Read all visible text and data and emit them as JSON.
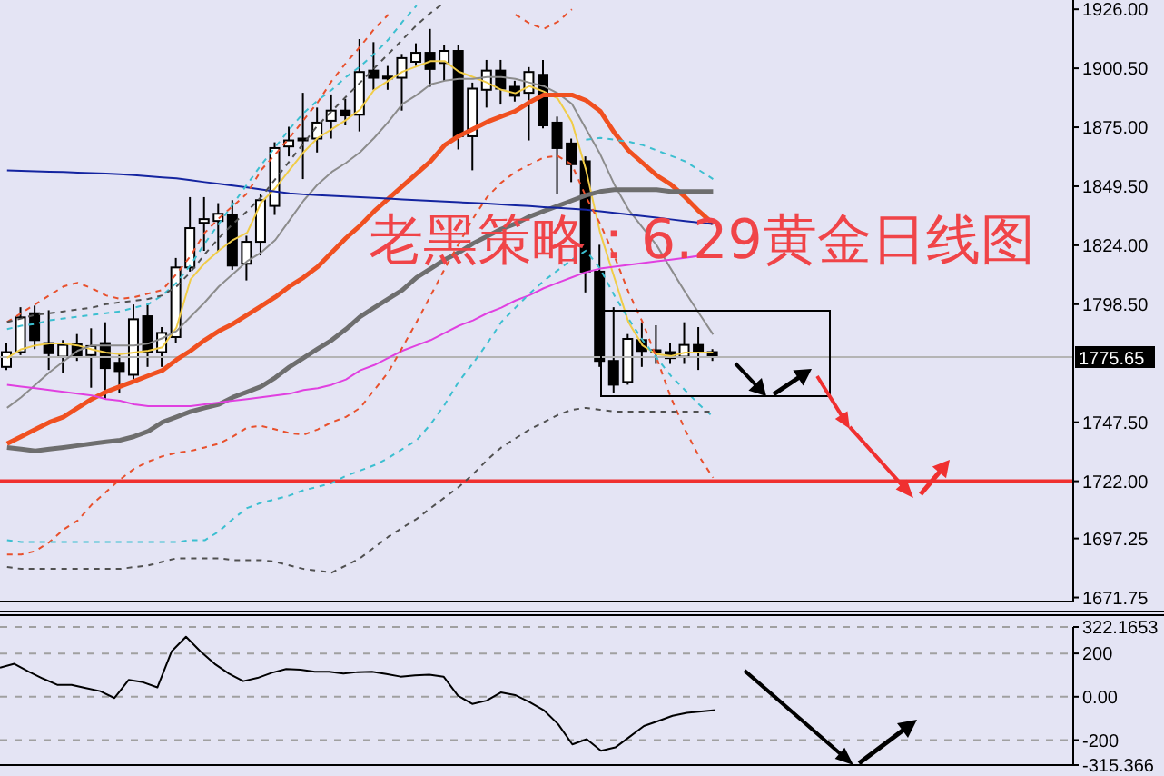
{
  "chart_data": [
    {
      "type": "candlestick",
      "title": "老黑策略：6.29黄金日线图",
      "categories": [
        null,
        null,
        null,
        null,
        null,
        null,
        null,
        null,
        null,
        null,
        null,
        null,
        null,
        null,
        null,
        null,
        null,
        null,
        null,
        null,
        null,
        null,
        null,
        null,
        null,
        null,
        null,
        null,
        null,
        null,
        null,
        null,
        null,
        null,
        null,
        null,
        null,
        null,
        null,
        null,
        null,
        null,
        null,
        null,
        null,
        null,
        null,
        null,
        null,
        null,
        null,
        null,
        null,
        null,
        null,
        null,
        null,
        null,
        null,
        null,
        null,
        null,
        null,
        null,
        null,
        null,
        null,
        null,
        null,
        null,
        null,
        null,
        null,
        null,
        null,
        null
      ],
      "ohlc": [
        [
          1771.4,
          1781.7,
          1770.1,
          1777.8
        ],
        [
          1777.8,
          1797.2,
          1776.5,
          1792.8
        ],
        [
          1794.6,
          1797.9,
          1779.1,
          1783.0
        ],
        [
          1781.7,
          1795.9,
          1770.1,
          1777.3
        ],
        [
          1775.8,
          1783.0,
          1768.8,
          1780.9
        ],
        [
          1781.2,
          1785.6,
          1774.0,
          1776.0
        ],
        [
          1776.5,
          1788.1,
          1762.4,
          1780.4
        ],
        [
          1781.7,
          1790.7,
          1757.2,
          1770.9
        ],
        [
          1773.2,
          1777.3,
          1760.3,
          1769.6
        ],
        [
          1768.0,
          1798.4,
          1764.9,
          1792.0
        ],
        [
          1793.3,
          1798.4,
          1771.4,
          1777.8
        ],
        [
          1777.8,
          1788.6,
          1771.4,
          1786.1
        ],
        [
          1784.3,
          1818.5,
          1781.7,
          1814.4
        ],
        [
          1814.4,
          1844.8,
          1812.6,
          1831.4
        ],
        [
          1833.7,
          1844.8,
          1821.6,
          1835.3
        ],
        [
          1834.5,
          1842.2,
          1821.6,
          1837.6
        ],
        [
          1837.1,
          1843.5,
          1813.4,
          1815.2
        ],
        [
          1816.0,
          1828.1,
          1808.8,
          1825.5
        ],
        [
          1825.5,
          1846.1,
          1819.6,
          1843.5
        ],
        [
          1841.0,
          1868.5,
          1837.1,
          1866.0
        ],
        [
          1866.7,
          1875.2,
          1862.4,
          1869.3
        ],
        [
          1869.6,
          1889.9,
          1852.6,
          1870.1
        ],
        [
          1870.1,
          1883.5,
          1864.1,
          1877.0
        ],
        [
          1877.8,
          1889.2,
          1870.1,
          1882.2
        ],
        [
          1882.2,
          1887.3,
          1875.8,
          1880.1
        ],
        [
          1880.4,
          1913.1,
          1873.2,
          1898.9
        ],
        [
          1899.5,
          1911.8,
          1891.2,
          1896.4
        ],
        [
          1896.9,
          1901.5,
          1891.2,
          1896.1
        ],
        [
          1896.4,
          1906.7,
          1882.2,
          1904.9
        ],
        [
          1903.3,
          1911.3,
          1901.5,
          1907.2
        ],
        [
          1907.2,
          1917.5,
          1892.5,
          1900.2
        ],
        [
          1902.8,
          1910.5,
          1895.1,
          1908.0
        ],
        [
          1908.0,
          1910.5,
          1865.4,
          1871.1
        ],
        [
          1871.1,
          1894.3,
          1856.4,
          1891.7
        ],
        [
          1891.2,
          1904.1,
          1883.5,
          1899.5
        ],
        [
          1899.5,
          1904.1,
          1884.8,
          1891.7
        ],
        [
          1892.5,
          1895.1,
          1886.1,
          1888.6
        ],
        [
          1889.9,
          1901.0,
          1869.3,
          1898.9
        ],
        [
          1897.7,
          1904.1,
          1874.5,
          1875.8
        ],
        [
          1877.0,
          1879.6,
          1846.1,
          1866.0
        ],
        [
          1868.0,
          1870.1,
          1851.3,
          1859.0
        ],
        [
          1860.3,
          1862.4,
          1803.6,
          1812.6
        ],
        [
          1812.6,
          1824.2,
          1771.4,
          1774.0
        ],
        [
          1774.0,
          1797.2,
          1760.3,
          1763.7
        ],
        [
          1764.9,
          1785.6,
          1763.7,
          1783.5
        ],
        [
          1783.0,
          1790.7,
          1771.4,
          1778.3
        ],
        [
          1778.6,
          1789.4,
          1772.7,
          1778.1
        ],
        [
          1777.8,
          1781.7,
          1772.7,
          1775.2
        ],
        [
          1775.8,
          1790.7,
          1772.7,
          1780.9
        ],
        [
          1780.9,
          1788.6,
          1770.1,
          1777.8
        ],
        [
          1777.8,
          1779.1,
          1774.0,
          1775.65
        ],
        null,
        null,
        null,
        null,
        null,
        null,
        null,
        null,
        null,
        null,
        null,
        null,
        null,
        null,
        null,
        null,
        null,
        null,
        null,
        null,
        null,
        null,
        null,
        null,
        null
      ],
      "series": [
        {
          "type": "line",
          "color": "#f0cc48",
          "line_style": "solid",
          "values": [
            1775.3,
            1779,
            1780.7,
            1781.5,
            1781.5,
            1780.7,
            1779,
            1777.6,
            1776.9,
            1777.6,
            1778.4,
            1779.9,
            1788.4,
            1809.3,
            1816.3,
            1821.7,
            1826.3,
            1829.4,
            1842.5,
            1848.7,
            1856.5,
            1864.2,
            1870.4,
            1874.2,
            1878.1,
            1882.7,
            1891.2,
            1895.1,
            1899,
            1901.3,
            1903.6,
            1903.6,
            1899,
            1896.7,
            1894.3,
            1891.2,
            1889.7,
            1892.8,
            1890.5,
            1887.4,
            1877.3,
            1856.5,
            1829.4,
            1810.1,
            1790.8,
            1780.7,
            1776.9,
            1776.1,
            1777.6,
            1777.6,
            1777.6,
            null,
            null,
            null,
            null,
            null,
            null,
            null,
            null,
            null,
            null,
            null,
            null,
            null,
            null,
            null,
            null,
            null,
            null,
            null,
            null,
            null,
            null,
            null,
            null,
            null
          ]
        },
        {
          "type": "line",
          "color": "#8c8c8c",
          "line_style": "solid",
          "values": [
            1753.7,
            1758.3,
            1763.7,
            1769.1,
            1773.8,
            1778.4,
            1780.7,
            1780.7,
            1780.7,
            1780.7,
            1781.5,
            1783.8,
            1786.9,
            1793.1,
            1799.3,
            1806.2,
            1811.6,
            1817.1,
            1820.9,
            1826.3,
            1834.8,
            1843.3,
            1850.3,
            1855.7,
            1859.6,
            1864.2,
            1870.4,
            1877.3,
            1885.1,
            1888.9,
            1893.6,
            1895.1,
            1895.9,
            1895.9,
            1896.7,
            1896.7,
            1895.9,
            1894.3,
            1892.8,
            1889.7,
            1885.1,
            1874.2,
            1863.4,
            1850.3,
            1839.5,
            1831.7,
            1824,
            1813.9,
            1803.9,
            1794.6,
            1785.4,
            null,
            null,
            null,
            null,
            null,
            null,
            null,
            null,
            null,
            null,
            null,
            null,
            null,
            null,
            null,
            null,
            null,
            null,
            null,
            null,
            null,
            null,
            null,
            null,
            null
          ]
        },
        {
          "type": "line",
          "color": "#f05020",
          "line_style": "solid",
          "values": [
            1738.2,
            1741.3,
            1744.4,
            1747.5,
            1749.8,
            1753.7,
            1757.5,
            1760.6,
            1762.9,
            1765.2,
            1767.6,
            1769.9,
            1774.5,
            1778.4,
            1783,
            1786.9,
            1790,
            1793.9,
            1797.7,
            1801.6,
            1806.2,
            1810.1,
            1814.7,
            1820.9,
            1827.1,
            1832.5,
            1838.7,
            1844.1,
            1849.5,
            1854.9,
            1860.3,
            1867.3,
            1871.2,
            1874.2,
            1877.3,
            1879.7,
            1882,
            1885.8,
            1889,
            1889,
            1889,
            1886.6,
            1882,
            1872.7,
            1865,
            1859.6,
            1854.2,
            1850.3,
            1844.9,
            1838.7,
            1833.3,
            null,
            null,
            null,
            null,
            null,
            null,
            null,
            null,
            null,
            null,
            null,
            null,
            null,
            null,
            null,
            null,
            null,
            null,
            null,
            null,
            null,
            null,
            null,
            null,
            null
          ]
        },
        {
          "type": "line",
          "color": "#6e6e6e",
          "line_style": "solid",
          "values": [
            1736.6,
            1735.9,
            1735.1,
            1735.9,
            1736.6,
            1737.4,
            1738.2,
            1739,
            1739.7,
            1741.3,
            1743.6,
            1747.5,
            1749.8,
            1752.1,
            1753.7,
            1755.2,
            1758.3,
            1760.6,
            1762.9,
            1766.8,
            1771.4,
            1775.3,
            1779.2,
            1783,
            1787.7,
            1793.1,
            1797,
            1800.8,
            1804.7,
            1810.1,
            1813.9,
            1817.8,
            1820.9,
            1824.8,
            1827.9,
            1831,
            1833.3,
            1836.4,
            1838.7,
            1841,
            1843.3,
            1845.6,
            1847.2,
            1848,
            1848,
            1848,
            1848,
            1847.2,
            1847.2,
            1847.2,
            1847.2,
            null,
            null,
            null,
            null,
            null,
            null,
            null,
            null,
            null,
            null,
            null,
            null,
            null,
            null,
            null,
            null,
            null,
            null,
            null,
            null,
            null,
            null,
            null,
            null,
            null
          ]
        },
        {
          "type": "line",
          "color": "#e040e0",
          "line_style": "solid",
          "values": [
            1763.7,
            1762.9,
            1762.2,
            1761.4,
            1760.6,
            1759.8,
            1759.1,
            1757.5,
            1756.8,
            1755.2,
            1754.4,
            1754.4,
            1754.4,
            1754.4,
            1755.2,
            1756,
            1756.8,
            1757.5,
            1758.3,
            1759.1,
            1759.8,
            1761.4,
            1762.2,
            1763.7,
            1766,
            1769.9,
            1772.2,
            1775.3,
            1778.4,
            1780.7,
            1783,
            1786.1,
            1789.2,
            1791.5,
            1794.6,
            1797,
            1800.1,
            1802.4,
            1805.4,
            1807.8,
            1810.1,
            1812.4,
            1813.9,
            1814.7,
            1815.5,
            1816.3,
            1817.1,
            1817.8,
            1818.6,
            1819.4,
            null,
            null,
            null,
            null,
            null,
            null,
            null,
            null,
            null,
            null,
            null,
            null,
            null,
            null,
            null,
            null,
            null,
            null,
            null,
            null,
            null,
            null,
            null,
            null,
            null,
            null
          ]
        },
        {
          "type": "line",
          "color": "#1424a0",
          "line_style": "solid",
          "values": [
            1856.4,
            1856.2,
            1856.0,
            1855.8,
            1855.7,
            1855.4,
            1855.2,
            1855.0,
            1854.7,
            1854.3,
            1853.8,
            1853.3,
            1852.9,
            1852.1,
            1851.3,
            1850.6,
            1849.8,
            1849.0,
            1848.1,
            1847.2,
            1846.4,
            1846.0,
            1845.7,
            1845.4,
            1845.1,
            1844.8,
            1844.5,
            1844.2,
            1843.8,
            1843.5,
            1843.2,
            1842.9,
            1842.6,
            1842.3,
            1842.0,
            1841.6,
            1841.2,
            1840.9,
            1840.5,
            1840.2,
            1839.8,
            1839.4,
            1838.7,
            1838.0,
            1837.3,
            1836.6,
            1835.9,
            1835.2,
            1834.5,
            1833.8,
            1833.2,
            null,
            null,
            null,
            null,
            null,
            null,
            null,
            null,
            null,
            null,
            null,
            null,
            null,
            null,
            null,
            null,
            null,
            null,
            null,
            null,
            null,
            null,
            null,
            null,
            null
          ]
        },
        {
          "type": "line",
          "color": "#e8502c",
          "line_style": "dashed",
          "values": [
            1790.8,
            1794.6,
            1798.5,
            1802.3,
            1806.2,
            1807.8,
            1805.4,
            1802.3,
            1800.8,
            1801.5,
            1803.1,
            1804.7,
            1811.6,
            1819.4,
            1829.4,
            1835.6,
            1841,
            1846.4,
            1856.5,
            1863.4,
            1870.4,
            1878.1,
            1885.8,
            1895.1,
            1902.8,
            1909.8,
            1917.5,
            1923.7,
            null,
            null,
            null,
            null,
            null,
            null,
            null,
            null,
            1923.7,
            1919.9,
            1917.5,
            1920.6,
            1926,
            null,
            null,
            null,
            null,
            null,
            null,
            null,
            null,
            null,
            null,
            null,
            null,
            null,
            null,
            null,
            null,
            null,
            null,
            null,
            null,
            null,
            null,
            null,
            null,
            null,
            null,
            null,
            null,
            null,
            null,
            null,
            null,
            null,
            null,
            null
          ]
        },
        {
          "type": "line",
          "color": "#e8502c",
          "line_style": "dashed",
          "values": [
            1690.3,
            1690.3,
            1691.8,
            1695.7,
            1701.1,
            1705,
            1711.9,
            1717.3,
            1722.7,
            1727.4,
            1730.5,
            1732.8,
            1734.3,
            1735.1,
            1736.6,
            1738.2,
            1741.3,
            1745.2,
            1745.9,
            1744.4,
            1742.8,
            1742.1,
            1744.4,
            1747.5,
            1749.8,
            1753.7,
            1761.4,
            1769.1,
            1779.9,
            1790.8,
            1802.3,
            1813.9,
            1824.8,
            1835.6,
            1844.9,
            1851.1,
            1855.7,
            1858.8,
            1861.9,
            1862.6,
            1858.8,
            1844.9,
            1833.3,
            1819.4,
            1803.9,
            1790.8,
            1775.3,
            1758.3,
            1744.4,
            1732.8,
            1723.5,
            null,
            null,
            null,
            null,
            null,
            null,
            null,
            null,
            null,
            null,
            null,
            null,
            null,
            null,
            null,
            null,
            null,
            null,
            null,
            null,
            null,
            null,
            null,
            null,
            null
          ]
        },
        {
          "type": "line",
          "color": "#3cbfd0",
          "line_style": "dashed",
          "values": [
            1787.7,
            1789.2,
            1790,
            1791.5,
            1792.3,
            1793.1,
            1793.9,
            1794.6,
            1795.4,
            1797,
            1798.5,
            1802.3,
            1807.8,
            1815.5,
            1824.8,
            1833.3,
            1841.8,
            1850.3,
            1858.8,
            1866.5,
            1874.2,
            1881.2,
            1886.6,
            1891.2,
            1896.7,
            1901.3,
            1906.7,
            1912.9,
            1920.6,
            1927.6,
            null,
            null,
            null,
            null,
            null,
            null,
            null,
            null,
            null,
            null,
            null,
            1869.6,
            1870.4,
            1869.6,
            1868.8,
            1867.3,
            1865,
            1862.7,
            1860.3,
            1856.5,
            1852.6,
            null,
            null,
            null,
            null,
            null,
            null,
            null,
            null,
            null,
            null,
            null,
            null,
            null,
            null,
            null,
            null,
            null,
            null,
            null,
            null,
            null,
            null,
            null,
            null,
            null
          ]
        },
        {
          "type": "line",
          "color": "#3cbfd0",
          "line_style": "dashed",
          "values": [
            1696.5,
            1695.7,
            1695.7,
            1695.7,
            1695.7,
            1695.7,
            1695.7,
            1695.7,
            1695.7,
            1695.7,
            1695.7,
            1695.7,
            1695.7,
            1696.5,
            1696.5,
            1700.3,
            1705.7,
            1710.4,
            1712.7,
            1714.2,
            1715.8,
            1718.1,
            1719.6,
            1721.2,
            1724.3,
            1726.6,
            1728.9,
            1732,
            1735.9,
            1739.7,
            1746.7,
            1755.2,
            1765.2,
            1773,
            1781.5,
            1790.8,
            1797,
            1803.1,
            1808.5,
            1813.2,
            1817.8,
            1821.7,
            1813.9,
            1802.3,
            1792.3,
            1783,
            1775.3,
            1767.6,
            1761.4,
            1755.2,
            1749.8,
            null,
            null,
            null,
            null,
            null,
            null,
            null,
            null,
            null,
            null,
            null,
            null,
            null,
            null,
            null,
            null,
            null,
            null,
            null,
            null,
            null,
            null,
            null,
            null,
            null
          ]
        },
        {
          "type": "line",
          "color": "#505050",
          "line_style": "dashed",
          "values": [
            1684.9,
            1684.1,
            1684.1,
            1684.1,
            1684.1,
            1684.1,
            1684.1,
            1684.1,
            1684.1,
            1684.9,
            1685.6,
            1687.2,
            1688.7,
            1688.7,
            1688.7,
            1688.7,
            1687.9,
            1687.9,
            1687.9,
            1687.2,
            1685.6,
            1684.1,
            1683.3,
            1682.5,
            1685.6,
            1688.7,
            1693.4,
            1698,
            1701.9,
            1705.7,
            1710.4,
            1715,
            1719.6,
            1725.1,
            1731.2,
            1736.6,
            1740.5,
            1744.4,
            1747.5,
            1750.6,
            1752.9,
            1753.7,
            1752.9,
            1752.1,
            1752.1,
            1752.1,
            1752.1,
            1752.1,
            1752.1,
            1752.1,
            1752.1,
            null,
            null,
            null,
            null,
            null,
            null,
            null,
            null,
            null,
            null,
            null,
            null,
            null,
            null,
            null,
            null,
            null,
            null,
            null,
            null,
            null,
            null,
            null,
            null,
            null
          ]
        },
        {
          "type": "line",
          "color": "#505050",
          "line_style": "dashed",
          "values": [
            1790.8,
            1792.3,
            1793.9,
            1794.6,
            1795.4,
            1796.2,
            1797,
            1798.5,
            1799.3,
            1800,
            1800.8,
            1802.3,
            1806.2,
            1812.4,
            1820.1,
            1827.1,
            1833.3,
            1838.7,
            1844.9,
            1852.6,
            1860.3,
            1868.1,
            1875.8,
            1882,
            1888.2,
            1894.3,
            1900.5,
            1906.7,
            1912.9,
            1919.1,
            1924.5,
            1929.1,
            null,
            null,
            null,
            null,
            null,
            null,
            null,
            null,
            null,
            null,
            null,
            null,
            null,
            null,
            null,
            null,
            null,
            null,
            null,
            null,
            null,
            null,
            null,
            null,
            null,
            null,
            null,
            null,
            null,
            null,
            null,
            null,
            null,
            null,
            null,
            null,
            null,
            null,
            null,
            null,
            null,
            null,
            null,
            null
          ]
        }
      ],
      "ylim": [
        1670,
        1930
      ],
      "yticks": [
        {
          "value": 1926,
          "label": "1926.00"
        },
        {
          "value": 1900.5,
          "label": "1900.50"
        },
        {
          "value": 1875,
          "label": "1875.00"
        },
        {
          "value": 1849.5,
          "label": "1849.50"
        },
        {
          "value": 1824,
          "label": "1824.00"
        },
        {
          "value": 1798.5,
          "label": "1798.50"
        },
        {
          "value": 1747.5,
          "label": "1747.50"
        },
        {
          "value": 1722,
          "label": "1722.00"
        },
        {
          "value": 1697.25,
          "label": "1697.25"
        },
        {
          "value": 1671.75,
          "label": "1671.75"
        }
      ],
      "ref_lines": [
        {
          "axis": "y",
          "value": 1775.65,
          "label": "1775.65",
          "color": "#b4b4b4"
        },
        {
          "axis": "y",
          "value": 1722,
          "color": "#f03030"
        }
      ],
      "tick_labels": "y",
      "grid": false
    },
    {
      "type": "line",
      "color": "#000000",
      "categories": [
        null,
        null,
        null,
        null,
        null,
        null,
        null,
        null,
        null,
        null,
        null,
        null,
        null,
        null,
        null,
        null,
        null,
        null,
        null,
        null,
        null,
        null,
        null,
        null,
        null,
        null,
        null,
        null,
        null,
        null,
        null,
        null,
        null,
        null,
        null,
        null,
        null,
        null,
        null,
        null,
        null,
        null,
        null,
        null,
        null,
        null,
        null,
        null,
        null,
        null,
        null,
        null,
        null,
        null,
        null,
        null,
        null,
        null,
        null,
        null,
        null,
        null,
        null,
        null,
        null,
        null,
        null,
        null,
        null,
        null,
        null,
        null,
        null,
        null,
        null,
        null
      ],
      "values": [
        134,
        152,
        116,
        84,
        55,
        55,
        40,
        26,
        -6,
        78,
        67,
        43,
        210,
        277,
        210,
        152,
        107,
        72,
        87,
        111,
        128,
        125,
        116,
        116,
        107,
        114,
        116,
        105,
        93,
        99,
        102,
        93,
        5,
        -33,
        -18,
        20,
        8,
        -24,
        -62,
        -126,
        -220,
        -196,
        -249,
        -234,
        -185,
        -135,
        -112,
        -88,
        -74,
        -68,
        -62,
        null,
        null,
        null,
        null,
        null,
        null,
        null,
        null,
        null,
        null,
        null,
        null,
        null,
        null,
        null,
        null,
        null,
        null,
        null,
        null,
        null,
        null,
        null,
        null,
        null
      ],
      "ylim": [
        -315.366,
        322.1653
      ],
      "yticks": [
        322.1653,
        200,
        {
          "value": 0,
          "label": "0.00"
        },
        -200,
        -315.366
      ],
      "tick_labels": "y",
      "grid": "y"
    }
  ]
}
